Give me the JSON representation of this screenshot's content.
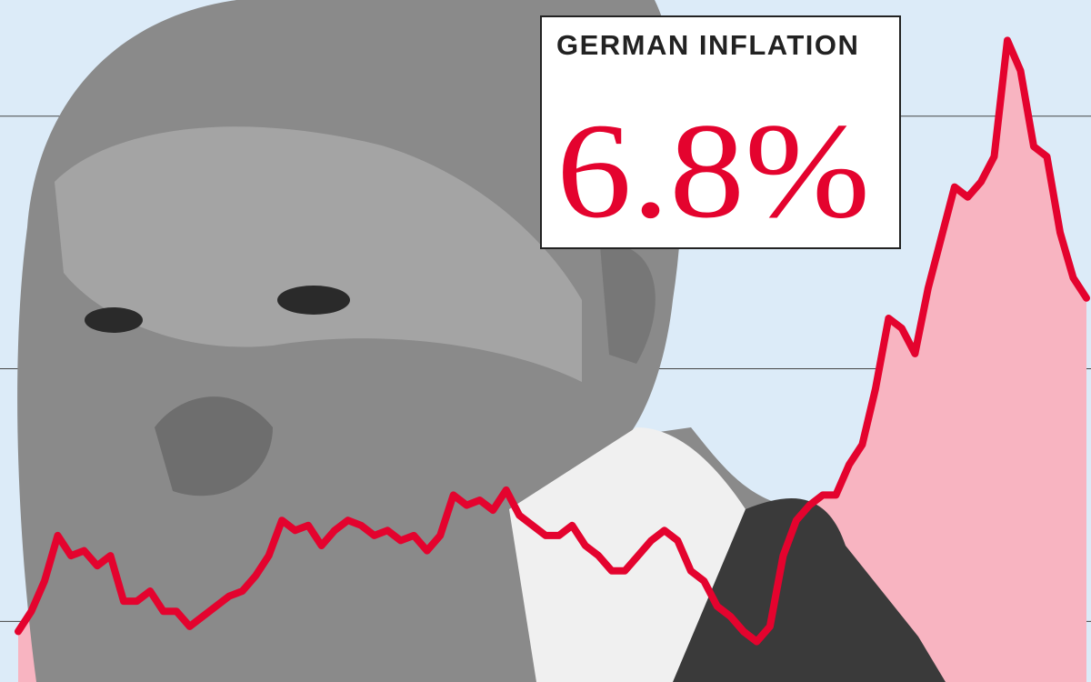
{
  "chart_data": {
    "type": "line",
    "title": "GERMAN INFLATION",
    "annotation": "6.8%",
    "values": [
      -0.2,
      0.2,
      0.8,
      1.7,
      1.3,
      1.4,
      1.1,
      1.3,
      0.4,
      0.4,
      0.6,
      0.2,
      0.2,
      -0.1,
      0.1,
      0.3,
      0.5,
      0.6,
      0.9,
      1.3,
      2.0,
      1.8,
      1.9,
      1.5,
      1.8,
      2.0,
      1.9,
      1.7,
      1.8,
      1.6,
      1.7,
      1.4,
      1.7,
      2.5,
      2.3,
      2.4,
      2.2,
      2.6,
      2.1,
      1.9,
      1.7,
      1.7,
      1.9,
      1.5,
      1.3,
      1.0,
      1.0,
      1.3,
      1.6,
      1.8,
      1.6,
      1.0,
      0.8,
      0.3,
      0.1,
      -0.2,
      -0.4,
      -0.1,
      1.3,
      2.0,
      2.3,
      2.5,
      2.5,
      3.1,
      3.5,
      4.6,
      6.0,
      5.8,
      5.3,
      6.6,
      7.6,
      8.6,
      8.4,
      8.7,
      9.2,
      11.5,
      10.9,
      9.4,
      9.2,
      7.7,
      6.8,
      6.4
    ],
    "color": "#e4032e",
    "fill_color": "#f8b4c1",
    "ylim": [
      -1.2,
      12.3
    ],
    "yticks": [
      0,
      5,
      10
    ],
    "grid": true
  }
}
